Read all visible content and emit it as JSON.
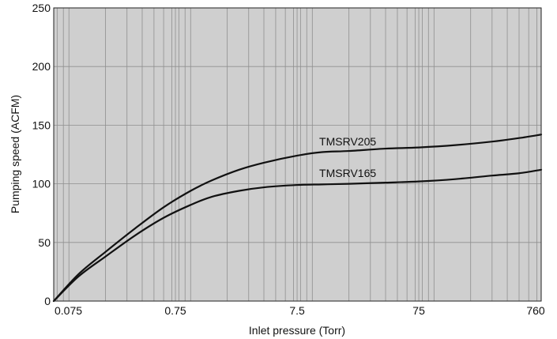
{
  "chart_data": {
    "type": "line",
    "title": "",
    "xlabel": "Inlet pressure (Torr)",
    "ylabel": "Pumping speed (ACFM)",
    "xscale": "log",
    "xlim": [
      0.075,
      760
    ],
    "ylim": [
      0,
      250
    ],
    "grid": true,
    "x_ticks": [
      {
        "value": 0.075,
        "label": "0.075"
      },
      {
        "value": 0.75,
        "label": "0.75"
      },
      {
        "value": 7.5,
        "label": "7.5"
      },
      {
        "value": 75,
        "label": "75"
      },
      {
        "value": 760,
        "label": "760"
      }
    ],
    "y_ticks": [
      {
        "value": 0,
        "label": "0"
      },
      {
        "value": 50,
        "label": "50"
      },
      {
        "value": 100,
        "label": "100"
      },
      {
        "value": 150,
        "label": "150"
      },
      {
        "value": 200,
        "label": "200"
      },
      {
        "value": 250,
        "label": "250"
      }
    ],
    "series": [
      {
        "name": "TMSRV205",
        "x": [
          0.075,
          0.12,
          0.2,
          0.35,
          0.6,
          1.0,
          1.5,
          2.5,
          4.0,
          7.5,
          12,
          20,
          40,
          75,
          150,
          300,
          500,
          760
        ],
        "y": [
          0,
          23,
          42,
          62,
          80,
          94,
          103,
          112,
          118,
          124,
          127,
          128,
          130,
          131,
          133,
          136,
          139,
          142
        ]
      },
      {
        "name": "TMSRV165",
        "x": [
          0.075,
          0.12,
          0.2,
          0.35,
          0.6,
          1.0,
          1.5,
          2.5,
          4.0,
          7.5,
          12,
          20,
          40,
          75,
          150,
          300,
          500,
          760
        ],
        "y": [
          0,
          21,
          38,
          56,
          71,
          82,
          89,
          94,
          97,
          99,
          99.5,
          100,
          101,
          102,
          104,
          107,
          109,
          112
        ]
      }
    ],
    "series_labels": [
      {
        "text": "TMSRV205",
        "x": 7.5,
        "y": 136
      },
      {
        "text": "TMSRV165",
        "x": 7.5,
        "y": 109
      }
    ]
  }
}
